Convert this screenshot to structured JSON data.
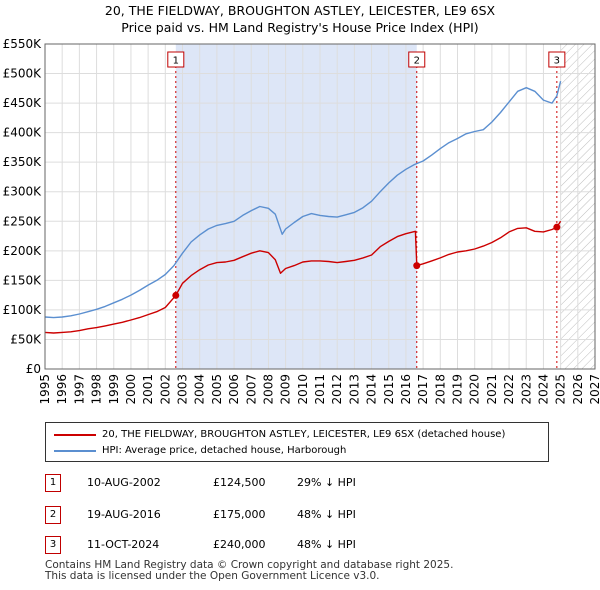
{
  "title_line1": "20, THE FIELDWAY, BROUGHTON ASTLEY, LEICESTER, LE9 6SX",
  "title_line2": "Price paid vs. HM Land Registry's House Price Index (HPI)",
  "colors": {
    "property": "#cc0000",
    "hpi": "#5b8fd0",
    "shade": "#dde6f7",
    "grid": "#dddddd",
    "marker_border": "#c00000"
  },
  "chart_data": {
    "type": "line",
    "xlim": [
      1995,
      2027
    ],
    "ylim": [
      0,
      550000
    ],
    "x_ticks": [
      "1995",
      "1996",
      "1997",
      "1998",
      "1999",
      "2000",
      "2001",
      "2002",
      "2003",
      "2004",
      "2005",
      "2006",
      "2007",
      "2008",
      "2009",
      "2010",
      "2011",
      "2012",
      "2013",
      "2014",
      "2015",
      "2016",
      "2017",
      "2018",
      "2019",
      "2020",
      "2021",
      "2022",
      "2023",
      "2024",
      "2025",
      "2026",
      "2027"
    ],
    "y_ticks": [
      {
        "value": 0,
        "label": "£0"
      },
      {
        "value": 50000,
        "label": "£50K"
      },
      {
        "value": 100000,
        "label": "£100K"
      },
      {
        "value": 150000,
        "label": "£150K"
      },
      {
        "value": 200000,
        "label": "£200K"
      },
      {
        "value": 250000,
        "label": "£250K"
      },
      {
        "value": 300000,
        "label": "£300K"
      },
      {
        "value": 350000,
        "label": "£350K"
      },
      {
        "value": 400000,
        "label": "£400K"
      },
      {
        "value": 450000,
        "label": "£450K"
      },
      {
        "value": 500000,
        "label": "£500K"
      },
      {
        "value": 550000,
        "label": "£550K"
      }
    ],
    "shaded_range": [
      2002.61,
      2016.63
    ],
    "hatched_from": 2025.0,
    "series": [
      {
        "name": "20, THE FIELDWAY, BROUGHTON ASTLEY, LEICESTER, LE9 6SX (detached house)",
        "color": "#cc0000",
        "x": [
          1995.0,
          1995.5,
          1996.0,
          1996.5,
          1997.0,
          1997.5,
          1998.0,
          1998.5,
          1999.0,
          1999.5,
          2000.0,
          2000.5,
          2001.0,
          2001.5,
          2002.0,
          2002.61,
          2003.0,
          2003.5,
          2004.0,
          2004.5,
          2005.0,
          2005.5,
          2006.0,
          2006.5,
          2007.0,
          2007.5,
          2008.0,
          2008.4,
          2008.7,
          2009.0,
          2009.5,
          2010.0,
          2010.5,
          2011.0,
          2011.5,
          2012.0,
          2012.5,
          2013.0,
          2013.5,
          2014.0,
          2014.5,
          2015.0,
          2015.5,
          2016.0,
          2016.55,
          2016.63,
          2017.0,
          2017.5,
          2018.0,
          2018.5,
          2019.0,
          2019.5,
          2020.0,
          2020.5,
          2021.0,
          2021.5,
          2022.0,
          2022.5,
          2023.0,
          2023.5,
          2024.0,
          2024.5,
          2024.78,
          2025.0
        ],
        "values": [
          62000,
          61000,
          62000,
          63000,
          65000,
          68000,
          70000,
          73000,
          76000,
          79000,
          83000,
          87000,
          92000,
          97000,
          104000,
          124500,
          145000,
          158000,
          168000,
          176000,
          180000,
          181000,
          184000,
          190000,
          196000,
          200000,
          197000,
          185000,
          162000,
          170000,
          175000,
          181000,
          183000,
          183000,
          182000,
          180000,
          182000,
          184000,
          188000,
          193000,
          207000,
          216000,
          224000,
          229000,
          233000,
          175000,
          178000,
          183000,
          188000,
          194000,
          198000,
          200000,
          203000,
          208000,
          214000,
          222000,
          232000,
          238000,
          239000,
          233000,
          232000,
          236000,
          240000,
          250000
        ]
      },
      {
        "name": "HPI: Average price, detached house, Harborough",
        "color": "#5b8fd0",
        "x": [
          1995.0,
          1995.5,
          1996.0,
          1996.5,
          1997.0,
          1997.5,
          1998.0,
          1998.5,
          1999.0,
          1999.5,
          2000.0,
          2000.5,
          2001.0,
          2001.5,
          2002.0,
          2002.5,
          2003.0,
          2003.5,
          2004.0,
          2004.5,
          2005.0,
          2005.5,
          2006.0,
          2006.5,
          2007.0,
          2007.5,
          2008.0,
          2008.4,
          2008.8,
          2009.0,
          2009.5,
          2010.0,
          2010.5,
          2011.0,
          2011.5,
          2012.0,
          2012.5,
          2013.0,
          2013.5,
          2014.0,
          2014.5,
          2015.0,
          2015.5,
          2016.0,
          2016.5,
          2017.0,
          2017.5,
          2018.0,
          2018.5,
          2019.0,
          2019.5,
          2020.0,
          2020.5,
          2021.0,
          2021.5,
          2022.0,
          2022.5,
          2023.0,
          2023.5,
          2024.0,
          2024.5,
          2024.78,
          2025.0
        ],
        "values": [
          88000,
          87000,
          88000,
          90000,
          93000,
          97000,
          101000,
          106000,
          112000,
          118000,
          125000,
          133000,
          142000,
          150000,
          160000,
          175000,
          196000,
          215000,
          227000,
          237000,
          243000,
          246000,
          250000,
          260000,
          268000,
          275000,
          272000,
          262000,
          228000,
          237000,
          248000,
          258000,
          263000,
          260000,
          258000,
          257000,
          261000,
          265000,
          273000,
          284000,
          300000,
          315000,
          328000,
          338000,
          346000,
          352000,
          362000,
          373000,
          383000,
          390000,
          398000,
          402000,
          405000,
          418000,
          434000,
          452000,
          470000,
          476000,
          470000,
          455000,
          450000,
          462000,
          487000
        ]
      }
    ],
    "sales": [
      {
        "id": "1",
        "x": 2002.61,
        "value": 124500,
        "date": "10-AUG-2002",
        "price": "£124,500",
        "pct": "29% ↓ HPI"
      },
      {
        "id": "2",
        "x": 2016.63,
        "value": 175000,
        "date": "19-AUG-2016",
        "price": "£175,000",
        "pct": "48% ↓ HPI"
      },
      {
        "id": "3",
        "x": 2024.78,
        "value": 240000,
        "date": "11-OCT-2024",
        "price": "£240,000",
        "pct": "48% ↓ HPI"
      }
    ]
  },
  "legend": {
    "property_label": "20, THE FIELDWAY, BROUGHTON ASTLEY, LEICESTER, LE9 6SX (detached house)",
    "hpi_label": "HPI: Average price, detached house, Harborough"
  },
  "footer": {
    "line1": "Contains HM Land Registry data © Crown copyright and database right 2025.",
    "line2": "This data is licensed under the Open Government Licence v3.0."
  }
}
